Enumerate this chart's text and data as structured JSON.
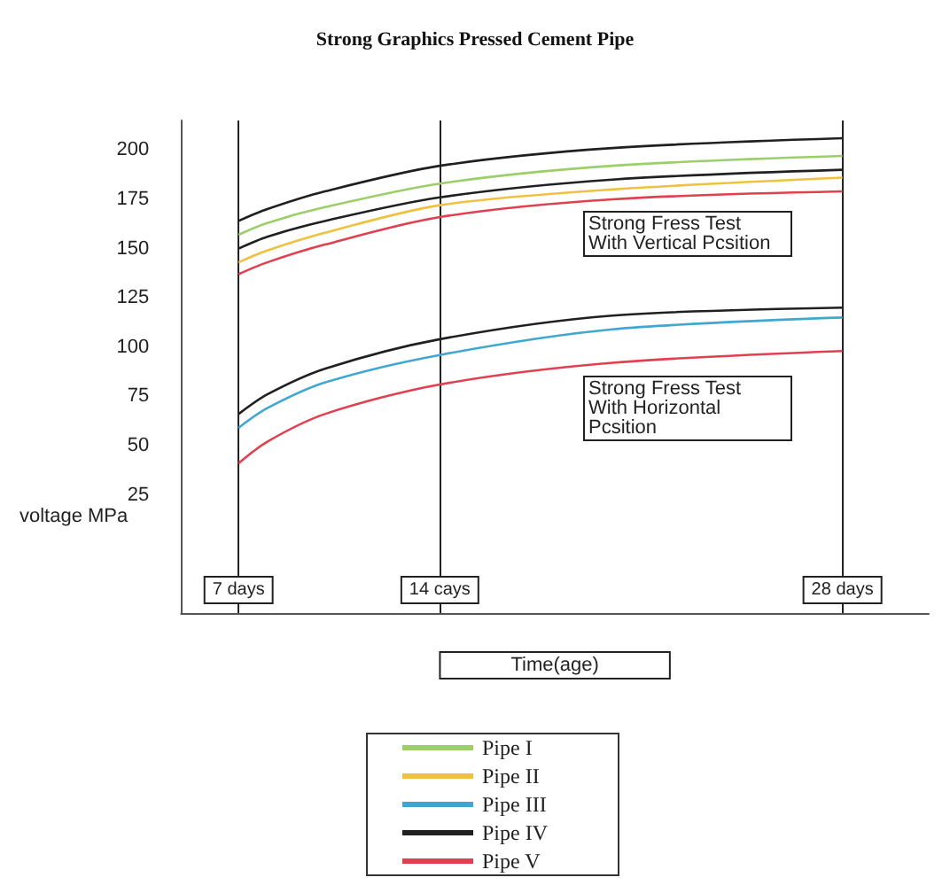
{
  "chart_data": {
    "type": "line",
    "title": "Strong Graphics Pressed Cement Pipe",
    "xlabel": "Time(age)",
    "ylabel": "voltage MPa",
    "x": [
      7,
      8,
      10,
      14,
      20,
      28
    ],
    "xlim": [
      5,
      31
    ],
    "xticks": [
      {
        "value": 7,
        "label": "7 days"
      },
      {
        "value": 14,
        "label": "14 cays"
      },
      {
        "value": 28,
        "label": "28 days"
      }
    ],
    "ylim": [
      -35,
      215
    ],
    "yticks": [
      25,
      50,
      75,
      100,
      125,
      150,
      175,
      200
    ],
    "grid": "x",
    "legend": "bottom",
    "marker": "none",
    "line_style": "solid",
    "series": [
      {
        "name": "Pipe I",
        "color": "#9ccf6a",
        "values": [
          157,
          163,
          171,
          183,
          192,
          197
        ]
      },
      {
        "name": "Pipe II",
        "color": "#f0c040",
        "values": [
          143,
          149,
          158,
          172,
          180,
          186
        ]
      },
      {
        "name": "Pipe III",
        "color": "#40a8d0",
        "values": [
          59,
          69,
          82,
          96,
          109,
          115
        ]
      },
      {
        "name": "Pipe IV",
        "color": "#202020",
        "values": [
          164,
          170,
          179,
          192,
          201,
          206
        ]
      },
      {
        "name": "Pipe V",
        "color": "#e04050",
        "values": [
          137,
          143,
          152,
          166,
          175,
          179
        ]
      },
      {
        "color": "#202020",
        "values": [
          150,
          156,
          164,
          176,
          185,
          190
        ]
      },
      {
        "color": "#202020",
        "values": [
          66,
          76,
          89,
          104,
          116,
          120
        ]
      },
      {
        "color": "#e04050",
        "values": [
          41,
          52,
          66,
          81,
          92,
          98
        ]
      }
    ],
    "annotations": [
      "Strong Fress Test With Vertical Pcsition",
      "Strong Fress Test With Horizontal Pcsition"
    ]
  }
}
